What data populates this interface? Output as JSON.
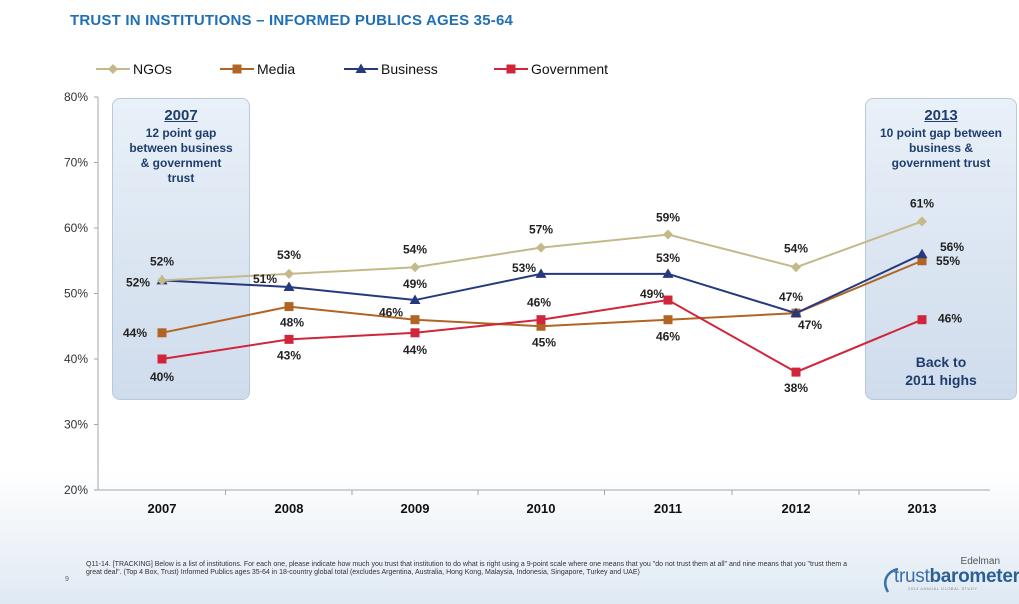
{
  "page": {
    "title": "TRUST IN INSTITUTIONS – INFORMED PUBLICS AGES 35-64",
    "footnote": "Q11-14. [TRACKING] Below is a list of institutions. For each one, please indicate how much you trust that institution to do what is right using a 9-point scale where one means that you \"do not trust them at all\" and nine means that you \"trust them a great deal\". (Top 4 Box, Trust) Informed Publics ages 35-64 in 18-country global total (excludes Argentina, Australia, Hong Kong, Malaysia, Indonesia, Singapore, Turkey and UAE)",
    "page_number": "9",
    "logo_small": "Edelman",
    "logo_main_a": "trust",
    "logo_main_b": "barometer",
    "logo_tagline": "2013 ANNUAL GLOBAL STUDY"
  },
  "callouts": {
    "left": {
      "year": "2007",
      "text": "12 point gap between business & government trust"
    },
    "right": {
      "year": "2013",
      "text": "10 point gap between business & government trust",
      "bottom_text": "Back to 2011 highs"
    }
  },
  "colors": {
    "NGOs": "#c4b98a",
    "Media": "#b06524",
    "Business": "#26397e",
    "Government": "#d0253a"
  },
  "chart_data": {
    "type": "line",
    "title": "TRUST IN INSTITUTIONS – INFORMED PUBLICS AGES 35-64",
    "categories": [
      "2007",
      "2008",
      "2009",
      "2010",
      "2011",
      "2012",
      "2013"
    ],
    "ylim": [
      20,
      80
    ],
    "yticks": [
      "20%",
      "30%",
      "40%",
      "50%",
      "60%",
      "70%",
      "80%"
    ],
    "legend_position": "top-left",
    "grid": false,
    "series": [
      {
        "name": "NGOs",
        "marker": "diamond",
        "values": [
          52,
          53,
          54,
          57,
          59,
          54,
          61
        ],
        "labels": [
          "52%",
          "53%",
          "54%",
          "57%",
          "59%",
          "54%",
          "61%"
        ]
      },
      {
        "name": "Media",
        "marker": "square",
        "values": [
          44,
          48,
          46,
          45,
          46,
          47,
          55
        ],
        "labels": [
          "44%",
          "48%",
          "46%",
          "45%",
          "46%",
          "",
          "55%"
        ]
      },
      {
        "name": "Business",
        "marker": "triangle",
        "values": [
          52,
          51,
          49,
          53,
          53,
          47,
          56
        ],
        "labels": [
          "52%",
          "51%",
          "49%",
          "53%",
          "53%",
          "47%",
          "56%"
        ]
      },
      {
        "name": "Government",
        "marker": "square",
        "values": [
          40,
          43,
          44,
          46,
          49,
          38,
          46
        ],
        "labels": [
          "40%",
          "43%",
          "44%",
          "46%",
          "49%",
          "38%",
          "46%"
        ]
      }
    ],
    "extra_labels": [
      "47%"
    ]
  }
}
